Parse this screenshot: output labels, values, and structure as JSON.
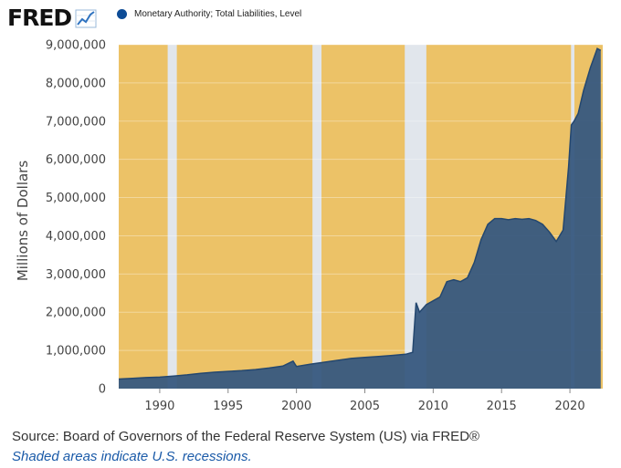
{
  "header": {
    "logo_text": "FRED",
    "logo_icon": "trend-line-icon"
  },
  "colors": {
    "area": "#375980",
    "area_line": "#24476f",
    "plot_bg": "#ecc267",
    "recession": "#e1e6ec",
    "legend_dot": "#0e4c96"
  },
  "footer": {
    "source": "Source: Board of Governors of the Federal Reserve System (US) via FRED®",
    "note": "Shaded areas indicate U.S. recessions."
  },
  "chart_data": {
    "type": "area",
    "title": "",
    "series": [
      {
        "name": "Monetary Authority; Total Liabilities, Level",
        "x": [
          1987.0,
          1988.0,
          1989.0,
          1990.0,
          1991.0,
          1992.0,
          1993.0,
          1994.0,
          1995.0,
          1996.0,
          1997.0,
          1998.0,
          1999.0,
          1999.75,
          2000.0,
          2001.0,
          2002.0,
          2003.0,
          2004.0,
          2005.0,
          2006.0,
          2007.0,
          2008.0,
          2008.5,
          2008.75,
          2009.0,
          2009.5,
          2010.0,
          2010.5,
          2011.0,
          2011.5,
          2012.0,
          2012.5,
          2013.0,
          2013.5,
          2014.0,
          2014.5,
          2015.0,
          2015.5,
          2016.0,
          2016.5,
          2017.0,
          2017.5,
          2018.0,
          2018.5,
          2019.0,
          2019.5,
          2019.9,
          2020.1,
          2020.3,
          2020.6,
          2021.0,
          2021.5,
          2022.0,
          2022.25
        ],
        "values": [
          250000,
          270000,
          290000,
          300000,
          330000,
          360000,
          400000,
          430000,
          450000,
          470000,
          500000,
          540000,
          590000,
          720000,
          580000,
          640000,
          690000,
          740000,
          790000,
          820000,
          840000,
          870000,
          900000,
          950000,
          2250000,
          2000000,
          2200000,
          2300000,
          2400000,
          2800000,
          2850000,
          2800000,
          2900000,
          3300000,
          3900000,
          4300000,
          4450000,
          4450000,
          4420000,
          4450000,
          4430000,
          4450000,
          4400000,
          4300000,
          4100000,
          3850000,
          4150000,
          5800000,
          6900000,
          7000000,
          7200000,
          7800000,
          8400000,
          8900000,
          8850000
        ]
      }
    ],
    "recessions": [
      [
        1990.58,
        1991.25
      ],
      [
        2001.17,
        2001.83
      ],
      [
        2007.92,
        2009.5
      ],
      [
        2020.08,
        2020.33
      ]
    ],
    "xlabel": "",
    "ylabel": "Millions of Dollars",
    "xlim": [
      1987.0,
      2022.4
    ],
    "ylim": [
      0,
      9000000
    ],
    "yticks": [
      0,
      1000000,
      2000000,
      3000000,
      4000000,
      5000000,
      6000000,
      7000000,
      8000000,
      9000000
    ],
    "ytick_labels": [
      "0",
      "1,000,000",
      "2,000,000",
      "3,000,000",
      "4,000,000",
      "5,000,000",
      "6,000,000",
      "7,000,000",
      "8,000,000",
      "9,000,000"
    ],
    "xticks": [
      1990,
      1995,
      2000,
      2005,
      2010,
      2015,
      2020
    ],
    "xtick_labels": [
      "1990",
      "1995",
      "2000",
      "2005",
      "2010",
      "2015",
      "2020"
    ],
    "grid": true,
    "legend_position": "top-left"
  }
}
